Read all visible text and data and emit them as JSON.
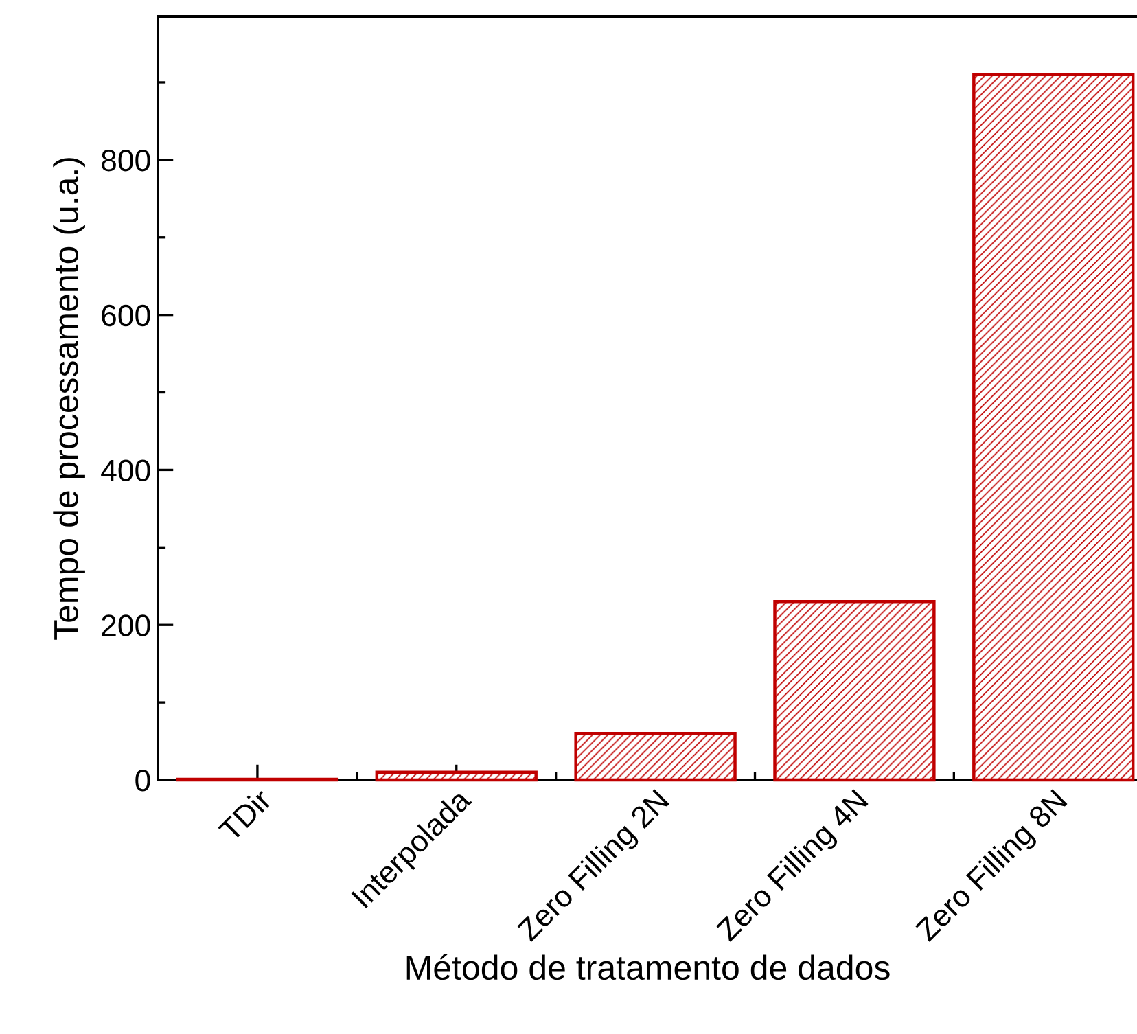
{
  "chart_data": {
    "type": "bar",
    "xlabel": "Método de tratamento de dados",
    "ylabel": "Tempo de processamento (u.a.)",
    "categories": [
      "TDir",
      "Interpolada",
      "Zero Filling 2N",
      "Zero Filling 4N",
      "Zero Filling 8N"
    ],
    "values": [
      1,
      10,
      60,
      230,
      910
    ],
    "color": "#c00000",
    "ylim": [
      0,
      985
    ],
    "yticks": [
      0,
      200,
      400,
      600,
      800
    ],
    "grid": false
  }
}
